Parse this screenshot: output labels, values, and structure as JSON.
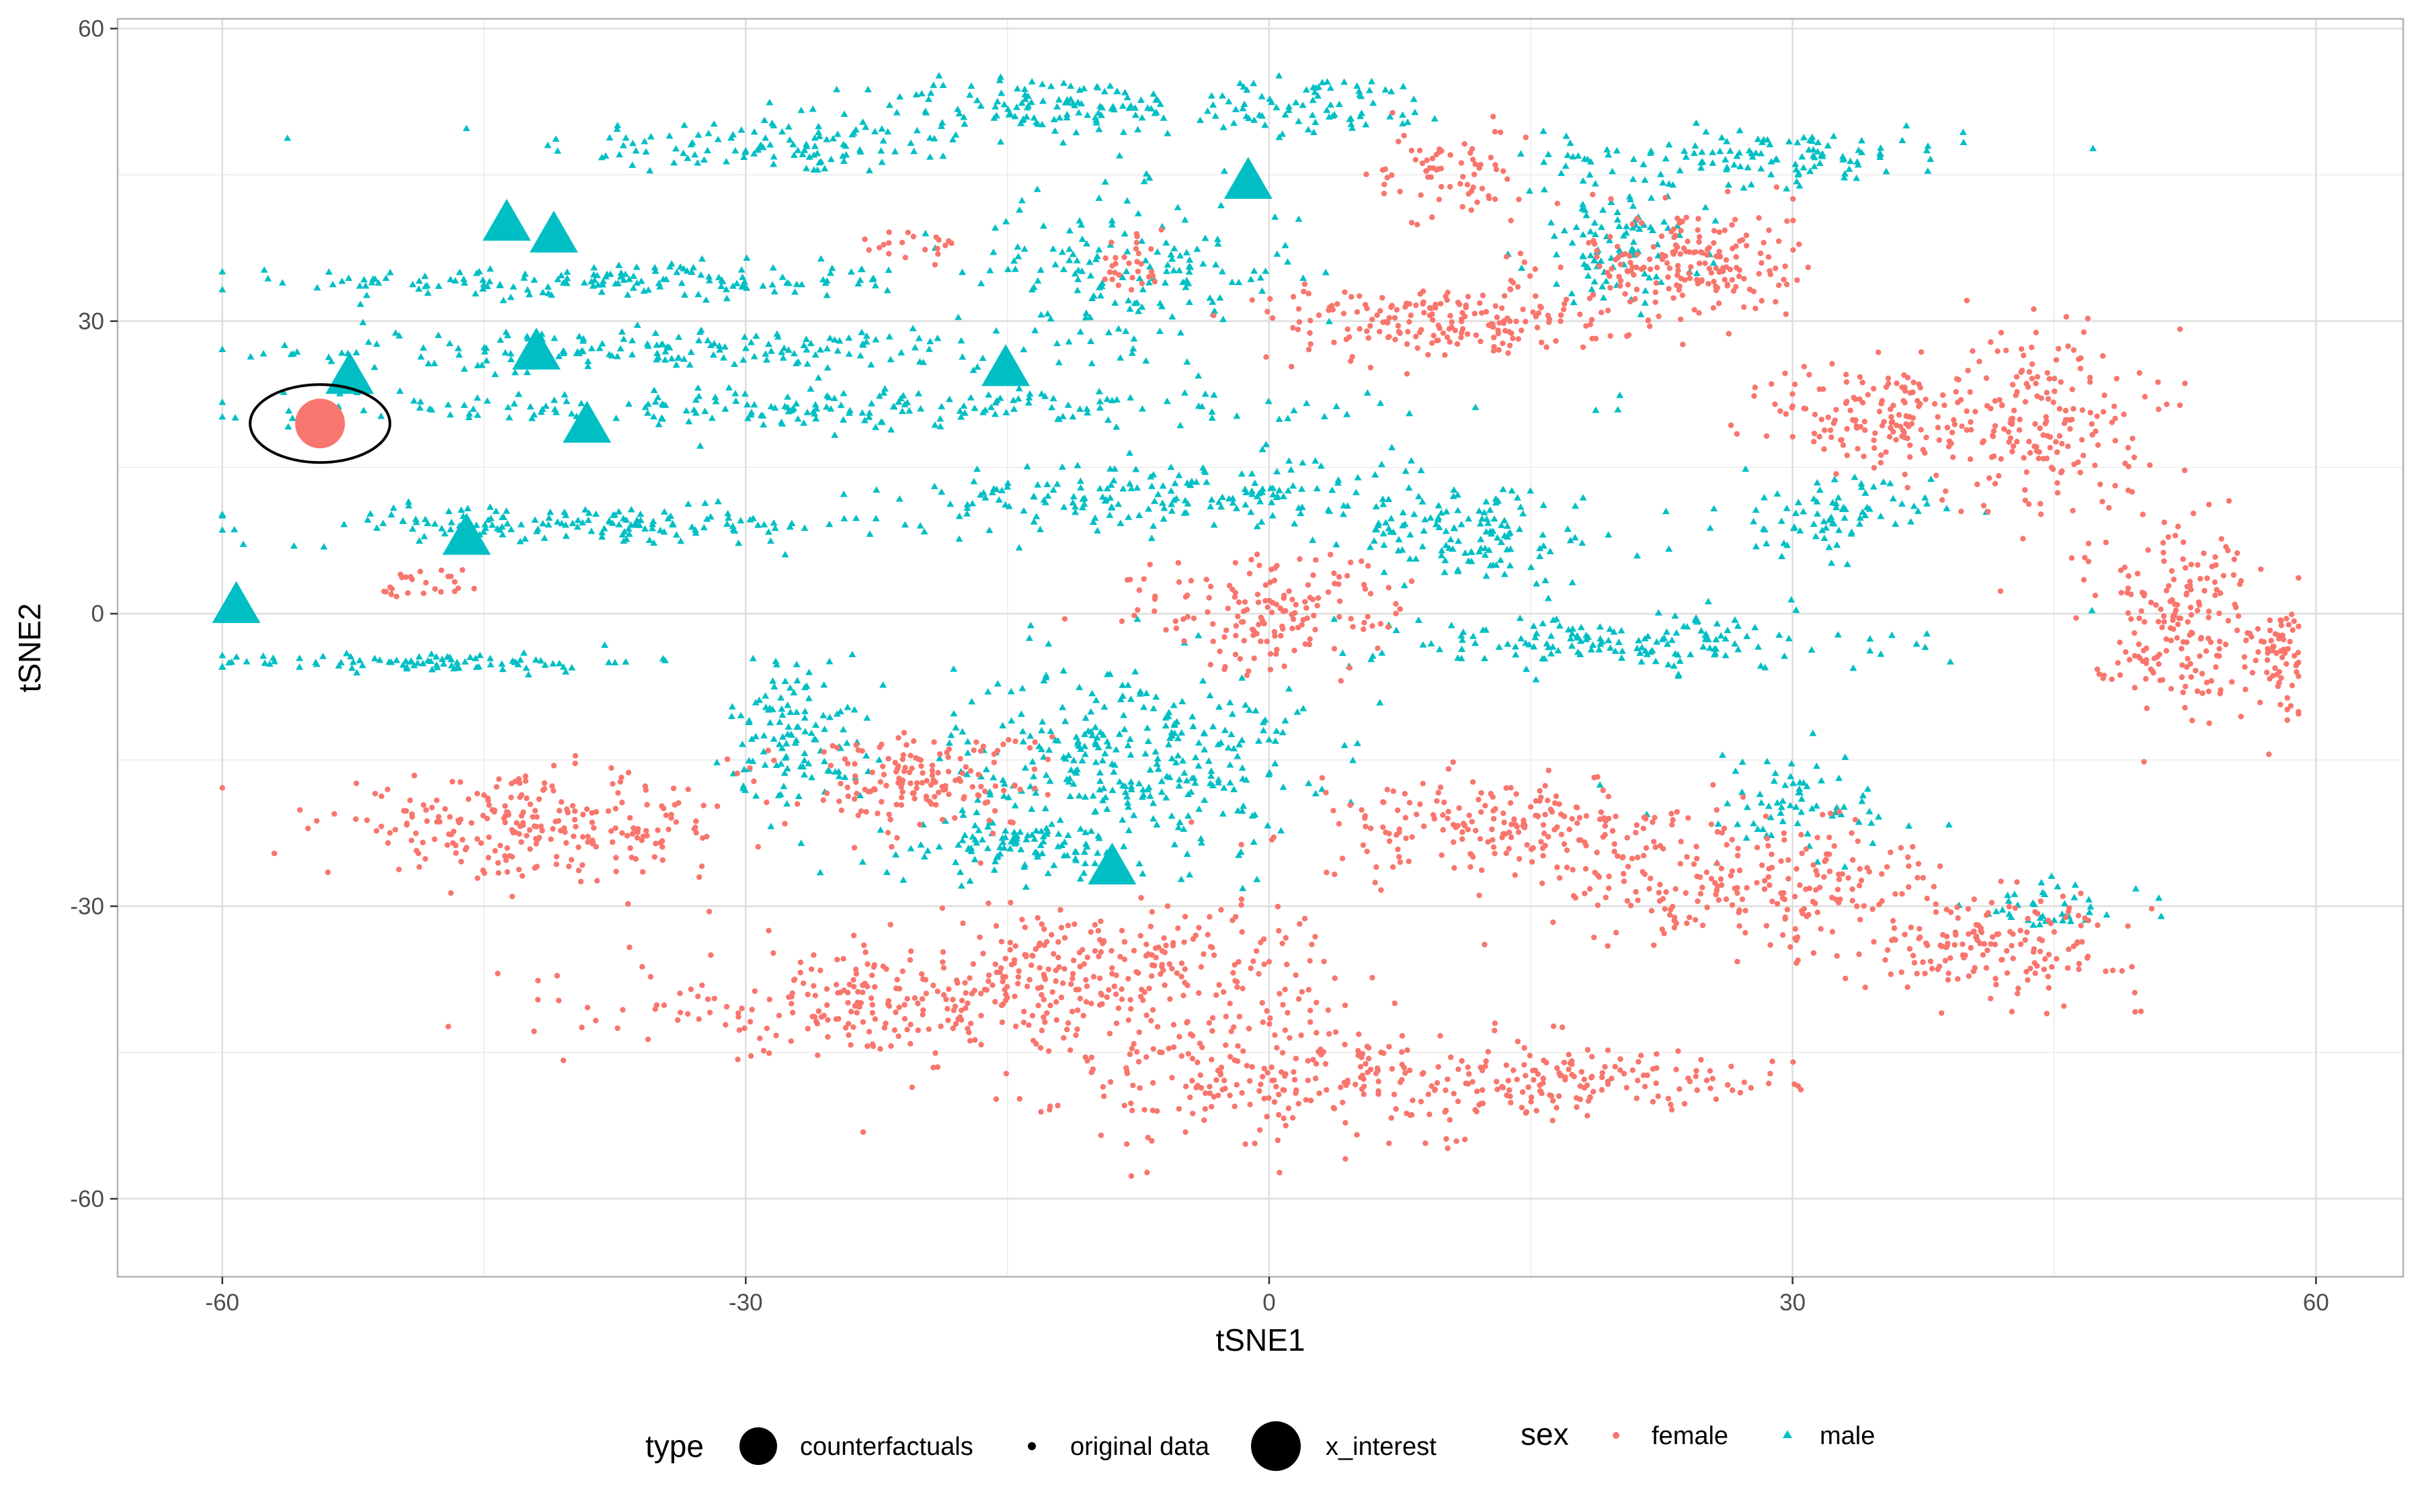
{
  "chart_data": {
    "type": "scatter",
    "title": "",
    "xlabel": "tSNE1",
    "ylabel": "tSNE2",
    "xlim": [
      -66,
      65
    ],
    "ylim": [
      -68,
      61
    ],
    "x_ticks": [
      -60,
      -30,
      0,
      30,
      60
    ],
    "y_ticks": [
      -60,
      -30,
      0,
      30,
      60
    ],
    "grid": true,
    "legend_position": "bottom",
    "colors": {
      "female": "#F8766D",
      "male": "#00BFC4"
    },
    "legend": {
      "type": {
        "title": "type",
        "entries": [
          "counterfactuals",
          "original data",
          "x_interest"
        ]
      },
      "sex": {
        "title": "sex",
        "entries": [
          "female",
          "male"
        ]
      }
    },
    "series": [
      {
        "name": "counterfactuals",
        "sex": "male",
        "points": [
          [
            -43.7,
            39.7
          ],
          [
            -41.0,
            38.5
          ],
          [
            -42.0,
            26.5
          ],
          [
            -52.7,
            24.0
          ],
          [
            -39.1,
            19.0
          ],
          [
            -46.0,
            7.5
          ],
          [
            -59.2,
            0.5
          ],
          [
            -1.2,
            44.0
          ],
          [
            -15.1,
            24.8
          ],
          [
            -9.0,
            -26.3
          ]
        ]
      },
      {
        "name": "x_interest",
        "sex": "female",
        "points": [
          [
            -54.4,
            19.5
          ]
        ]
      },
      {
        "name": "original data",
        "sex": "mixed",
        "clusters": [
          {
            "sex": "male",
            "center": [
              -28,
              48
            ],
            "spread": [
              14,
              3
            ],
            "n": 120
          },
          {
            "sex": "male",
            "center": [
              -38,
              34
            ],
            "spread": [
              18,
              2
            ],
            "n": 160
          },
          {
            "sex": "male",
            "center": [
              -35,
              27
            ],
            "spread": [
              20,
              2
            ],
            "n": 180
          },
          {
            "sex": "male",
            "center": [
              -25,
              21
            ],
            "spread": [
              30,
              2
            ],
            "n": 220
          },
          {
            "sex": "male",
            "center": [
              -40,
              9
            ],
            "spread": [
              18,
              2
            ],
            "n": 160
          },
          {
            "sex": "male",
            "center": [
              -48,
              -5
            ],
            "spread": [
              12,
              1
            ],
            "n": 90
          },
          {
            "sex": "male",
            "center": [
              -13,
              52
            ],
            "spread": [
              10,
              3
            ],
            "n": 120
          },
          {
            "sex": "male",
            "center": [
              3,
              52
            ],
            "spread": [
              8,
              3
            ],
            "n": 80
          },
          {
            "sex": "male",
            "center": [
              28,
              47
            ],
            "spread": [
              12,
              3
            ],
            "n": 130
          },
          {
            "sex": "male",
            "center": [
              -8,
              35
            ],
            "spread": [
              10,
              8
            ],
            "n": 160
          },
          {
            "sex": "male",
            "center": [
              -5,
              12
            ],
            "spread": [
              16,
              4
            ],
            "n": 200
          },
          {
            "sex": "male",
            "center": [
              -8,
              -15
            ],
            "spread": [
              10,
              10
            ],
            "n": 320
          },
          {
            "sex": "male",
            "center": [
              -27,
              -12
            ],
            "spread": [
              4,
              8
            ],
            "n": 120
          },
          {
            "sex": "male",
            "center": [
              -15,
              -24
            ],
            "spread": [
              8,
              3
            ],
            "n": 100
          },
          {
            "sex": "male",
            "center": [
              12,
              8
            ],
            "spread": [
              7,
              5
            ],
            "n": 120
          },
          {
            "sex": "male",
            "center": [
              20,
              -3
            ],
            "spread": [
              15,
              3
            ],
            "n": 160
          },
          {
            "sex": "male",
            "center": [
              32,
              10
            ],
            "spread": [
              6,
              4
            ],
            "n": 80
          },
          {
            "sex": "male",
            "center": [
              20,
              38
            ],
            "spread": [
              5,
              6
            ],
            "n": 100
          },
          {
            "sex": "male",
            "center": [
              30,
              -20
            ],
            "spread": [
              8,
              6
            ],
            "n": 70
          },
          {
            "sex": "male",
            "center": [
              45,
              -30
            ],
            "spread": [
              5,
              3
            ],
            "n": 40
          },
          {
            "sex": "female",
            "center": [
              -42,
              -22
            ],
            "spread": [
              12,
              5
            ],
            "n": 260
          },
          {
            "sex": "female",
            "center": [
              -22,
              -40
            ],
            "spread": [
              15,
              5
            ],
            "n": 260
          },
          {
            "sex": "female",
            "center": [
              -8,
              -36
            ],
            "spread": [
              12,
              7
            ],
            "n": 240
          },
          {
            "sex": "female",
            "center": [
              2,
              -48
            ],
            "spread": [
              14,
              7
            ],
            "n": 260
          },
          {
            "sex": "female",
            "center": [
              18,
              -48
            ],
            "spread": [
              12,
              3
            ],
            "n": 140
          },
          {
            "sex": "female",
            "center": [
              14,
              -22
            ],
            "spread": [
              12,
              5
            ],
            "n": 220
          },
          {
            "sex": "female",
            "center": [
              28,
              -28
            ],
            "spread": [
              12,
              6
            ],
            "n": 220
          },
          {
            "sex": "female",
            "center": [
              42,
              -34
            ],
            "spread": [
              8,
              5
            ],
            "n": 160
          },
          {
            "sex": "female",
            "center": [
              10,
              30
            ],
            "spread": [
              10,
              4
            ],
            "n": 200
          },
          {
            "sex": "female",
            "center": [
              24,
              36
            ],
            "spread": [
              6,
              6
            ],
            "n": 200
          },
          {
            "sex": "female",
            "center": [
              35,
              20
            ],
            "spread": [
              6,
              6
            ],
            "n": 140
          },
          {
            "sex": "female",
            "center": [
              44,
              20
            ],
            "spread": [
              6,
              10
            ],
            "n": 200
          },
          {
            "sex": "female",
            "center": [
              52,
              0
            ],
            "spread": [
              5,
              10
            ],
            "n": 200
          },
          {
            "sex": "female",
            "center": [
              58,
              -5
            ],
            "spread": [
              2,
              6
            ],
            "n": 60
          },
          {
            "sex": "female",
            "center": [
              -20,
              -17
            ],
            "spread": [
              7,
              5
            ],
            "n": 160
          },
          {
            "sex": "female",
            "center": [
              0,
              0
            ],
            "spread": [
              8,
              6
            ],
            "n": 160
          },
          {
            "sex": "female",
            "center": [
              10,
              45
            ],
            "spread": [
              4,
              5
            ],
            "n": 70
          },
          {
            "sex": "female",
            "center": [
              -8,
              36
            ],
            "spread": [
              2,
              4
            ],
            "n": 30
          },
          {
            "sex": "female",
            "center": [
              -20,
              38
            ],
            "spread": [
              3,
              2
            ],
            "n": 20
          },
          {
            "sex": "female",
            "center": [
              -48,
              3
            ],
            "spread": [
              3,
              2
            ],
            "n": 25
          }
        ]
      }
    ]
  }
}
